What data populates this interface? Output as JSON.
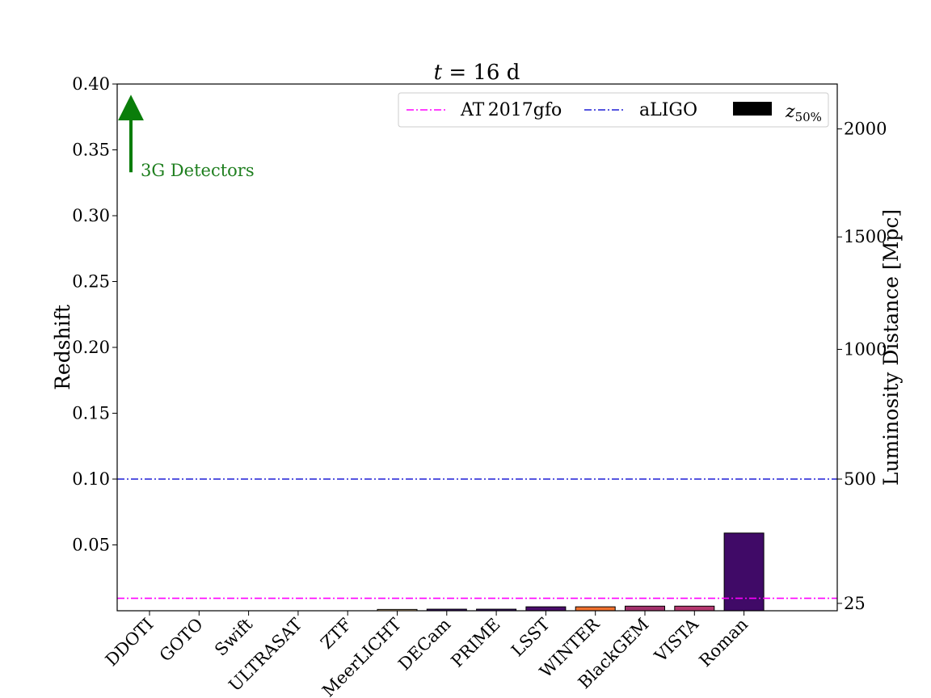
{
  "chart_data": {
    "type": "bar",
    "title": "t = 16 d",
    "title_math": "t",
    "title_rest": " = 16 d",
    "ylabel": "Redshift",
    "ylabel_right": "Luminosity Distance [Mpc]",
    "ylim": [
      0,
      0.4
    ],
    "yticks": [
      "0.05",
      "0.10",
      "0.15",
      "0.20",
      "0.25",
      "0.30",
      "0.35",
      "0.40"
    ],
    "ytick_values": [
      0.05,
      0.1,
      0.15,
      0.2,
      0.25,
      0.3,
      0.35,
      0.4
    ],
    "right_ticks": [
      {
        "label": "25",
        "z": 0.0056
      },
      {
        "label": "500",
        "z": 0.1
      },
      {
        "label": "1000",
        "z": 0.1985
      },
      {
        "label": "1500",
        "z": 0.2839
      },
      {
        "label": "2000",
        "z": 0.3659
      }
    ],
    "categories": [
      "DDOTI",
      "GOTO",
      "Swift",
      "ULTRASAT",
      "ZTF",
      "MeerLICHT",
      "DECam",
      "PRIME",
      "LSST",
      "WINTER",
      "BlackGEM",
      "VISTA",
      "Roman"
    ],
    "values": [
      0,
      0,
      0,
      0,
      0,
      0.001,
      0.0012,
      0.0012,
      0.003,
      0.003,
      0.0035,
      0.0035,
      0.059
    ],
    "bar_colors": [
      "#fcfdbf",
      "#fcfdbf",
      "#fcfdbf",
      "#fcfdbf",
      "#fcfdbf",
      "#fbd39a",
      "#3b0f70",
      "#3b0f70",
      "#4a0c6b",
      "#f0702e",
      "#a2306b",
      "#b5376f",
      "#400a67"
    ],
    "hlines": [
      {
        "name": "AT 2017gfo",
        "y": 0.0095,
        "color": "#ff00ff"
      },
      {
        "name": "aLIGO",
        "y": 0.1,
        "color": "#1f1fd6"
      }
    ],
    "legend": {
      "placement": "top-right",
      "bar_label_main": "z",
      "bar_label_sub": "50%"
    },
    "annotation": {
      "text": "3G Detectors",
      "arrow_from": 0.333,
      "arrow_to": 0.387,
      "color": "#0a7d0a"
    },
    "grid": false
  }
}
